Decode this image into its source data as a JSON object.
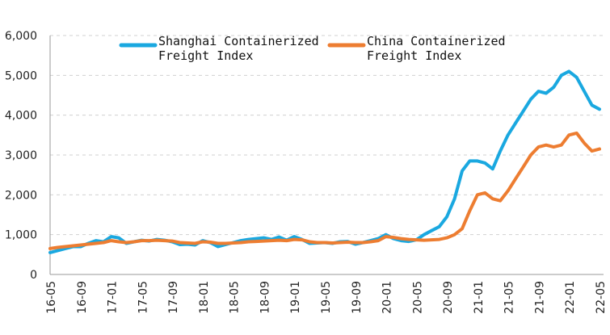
{
  "chart_data": {
    "type": "line",
    "x_tick_labels": [
      "16-05",
      "16-09",
      "17-01",
      "17-05",
      "17-09",
      "18-01",
      "18-05",
      "18-09",
      "19-01",
      "19-05",
      "19-09",
      "20-01",
      "20-05",
      "20-09",
      "21-01",
      "21-05",
      "21-09",
      "22-01",
      "22-05"
    ],
    "y_tick_labels": [
      "0",
      "1,000",
      "2,000",
      "3,000",
      "4,000",
      "5,000",
      "6,000"
    ],
    "ylim": [
      0,
      6000
    ],
    "xlim": [
      "2016-05",
      "2022-05"
    ],
    "grid": "horizontal-dashed",
    "legend_placement": "top",
    "series": [
      {
        "name": "Shanghai Containerized Freight Index",
        "color": "#1aa8e0",
        "x": [
          "2016-05",
          "2016-06",
          "2016-07",
          "2016-08",
          "2016-09",
          "2016-10",
          "2016-11",
          "2016-12",
          "2017-01",
          "2017-02",
          "2017-03",
          "2017-04",
          "2017-05",
          "2017-06",
          "2017-07",
          "2017-08",
          "2017-09",
          "2017-10",
          "2017-11",
          "2017-12",
          "2018-01",
          "2018-02",
          "2018-03",
          "2018-04",
          "2018-05",
          "2018-06",
          "2018-07",
          "2018-08",
          "2018-09",
          "2018-10",
          "2018-11",
          "2018-12",
          "2019-01",
          "2019-02",
          "2019-03",
          "2019-04",
          "2019-05",
          "2019-06",
          "2019-07",
          "2019-08",
          "2019-09",
          "2019-10",
          "2019-11",
          "2019-12",
          "2020-01",
          "2020-02",
          "2020-03",
          "2020-04",
          "2020-05",
          "2020-06",
          "2020-07",
          "2020-08",
          "2020-09",
          "2020-10",
          "2020-11",
          "2020-12",
          "2021-01",
          "2021-02",
          "2021-03",
          "2021-04",
          "2021-05",
          "2021-06",
          "2021-07",
          "2021-08",
          "2021-09",
          "2021-10",
          "2021-11",
          "2021-12",
          "2022-01",
          "2022-02",
          "2022-03",
          "2022-04",
          "2022-05"
        ],
        "values": [
          550,
          600,
          650,
          700,
          700,
          780,
          850,
          820,
          950,
          920,
          780,
          820,
          860,
          840,
          880,
          860,
          820,
          750,
          760,
          740,
          850,
          800,
          700,
          750,
          800,
          850,
          880,
          900,
          920,
          880,
          940,
          860,
          950,
          880,
          780,
          790,
          800,
          780,
          820,
          830,
          760,
          800,
          850,
          900,
          1000,
          900,
          850,
          830,
          870,
          1000,
          1100,
          1200,
          1450,
          1900,
          2600,
          2850,
          2850,
          2800,
          2650,
          3100,
          3500,
          3800,
          4100,
          4400,
          4600,
          4550,
          4700,
          5000,
          5100,
          4950,
          4600,
          4250,
          4150
        ]
      },
      {
        "name": "China Containerized Freight Index",
        "color": "#ed7d31",
        "x": [
          "2016-05",
          "2016-06",
          "2016-07",
          "2016-08",
          "2016-09",
          "2016-10",
          "2016-11",
          "2016-12",
          "2017-01",
          "2017-02",
          "2017-03",
          "2017-04",
          "2017-05",
          "2017-06",
          "2017-07",
          "2017-08",
          "2017-09",
          "2017-10",
          "2017-11",
          "2017-12",
          "2018-01",
          "2018-02",
          "2018-03",
          "2018-04",
          "2018-05",
          "2018-06",
          "2018-07",
          "2018-08",
          "2018-09",
          "2018-10",
          "2018-11",
          "2018-12",
          "2019-01",
          "2019-02",
          "2019-03",
          "2019-04",
          "2019-05",
          "2019-06",
          "2019-07",
          "2019-08",
          "2019-09",
          "2019-10",
          "2019-11",
          "2019-12",
          "2020-01",
          "2020-02",
          "2020-03",
          "2020-04",
          "2020-05",
          "2020-06",
          "2020-07",
          "2020-08",
          "2020-09",
          "2020-10",
          "2020-11",
          "2020-12",
          "2021-01",
          "2021-02",
          "2021-03",
          "2021-04",
          "2021-05",
          "2021-06",
          "2021-07",
          "2021-08",
          "2021-09",
          "2021-10",
          "2021-11",
          "2021-12",
          "2022-01",
          "2022-02",
          "2022-03",
          "2022-04",
          "2022-05"
        ],
        "values": [
          650,
          680,
          700,
          720,
          740,
          760,
          780,
          800,
          850,
          820,
          800,
          820,
          850,
          850,
          860,
          850,
          840,
          800,
          790,
          780,
          820,
          810,
          780,
          780,
          790,
          800,
          820,
          830,
          840,
          850,
          860,
          850,
          880,
          870,
          820,
          800,
          800,
          790,
          800,
          810,
          800,
          800,
          820,
          850,
          950,
          930,
          900,
          880,
          870,
          860,
          870,
          880,
          920,
          1000,
          1150,
          1600,
          2000,
          2050,
          1900,
          1850,
          2100,
          2400,
          2700,
          3000,
          3200,
          3250,
          3200,
          3250,
          3500,
          3550,
          3300,
          3100,
          3150
        ]
      }
    ]
  }
}
